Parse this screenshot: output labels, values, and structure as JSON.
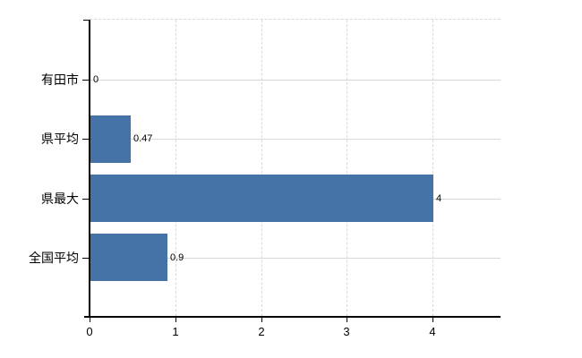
{
  "chart_data": {
    "type": "bar",
    "orientation": "horizontal",
    "categories": [
      "有田市",
      "県平均",
      "県最大",
      "全国平均"
    ],
    "values": [
      0,
      0.47,
      4,
      0.9
    ],
    "data_labels": [
      "0",
      "0.47",
      "4",
      "0.9"
    ],
    "x_tick_values": [
      0,
      1,
      2,
      3,
      4
    ],
    "x_tick_labels": [
      "0",
      "1",
      "2",
      "3",
      "4"
    ],
    "xlim": [
      0,
      4.8
    ],
    "grid": "on",
    "legend": "none",
    "colors": {
      "bar": "#4572a7",
      "axis": "#000000",
      "grid_horizontal": "#d4dad4",
      "grid_vertical": "#d9d9dc",
      "plot_border_top": "#d9d9dc",
      "text": "#000000",
      "background": "#ffffff"
    }
  }
}
